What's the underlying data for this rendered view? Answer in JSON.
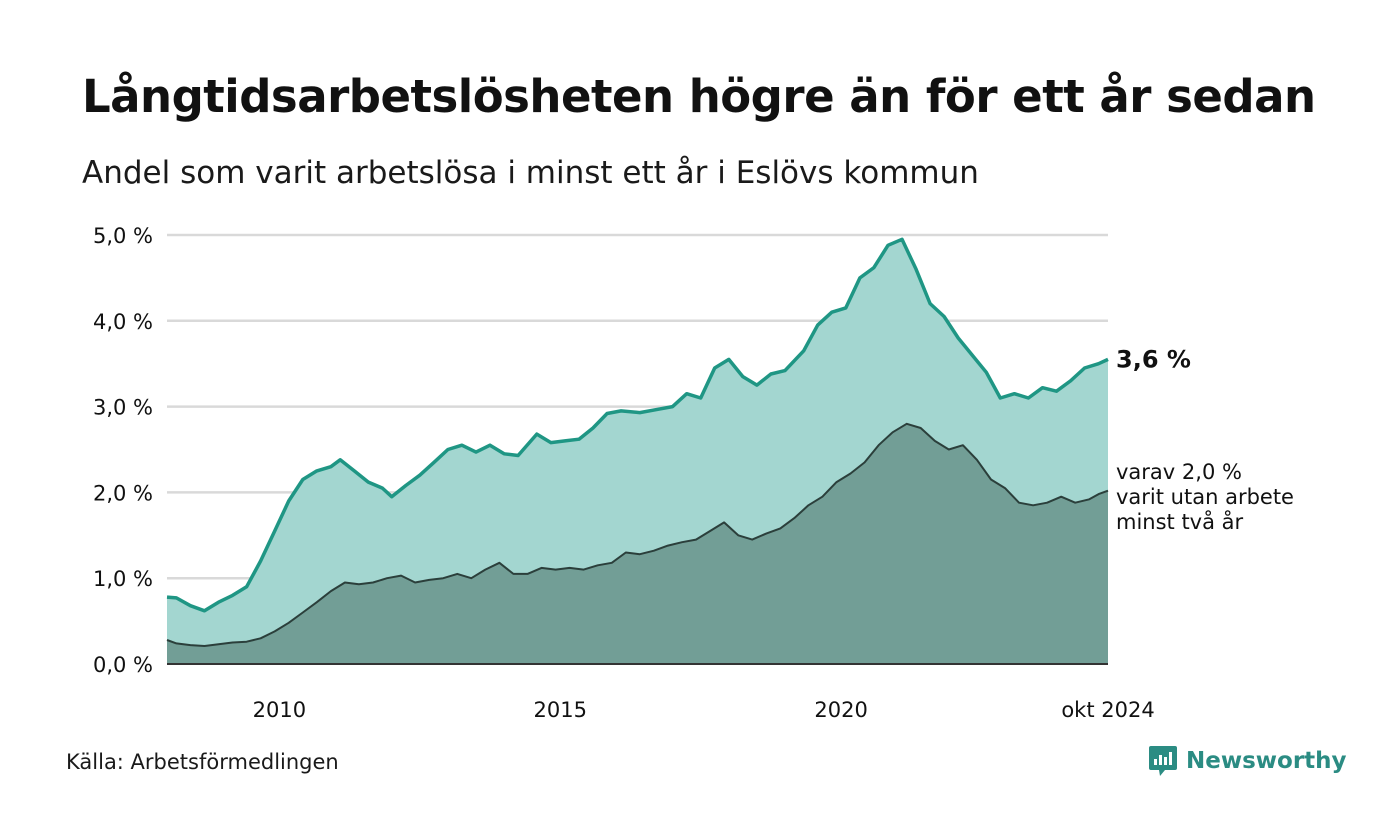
{
  "header": {
    "title": "Långtidsarbetslösheten högre än för ett år sedan",
    "subtitle": "Andel som varit arbetslösa i minst ett år i Eslövs kommun"
  },
  "footer": {
    "source": "Källa: Arbetsförmedlingen",
    "brand": "Newsworthy"
  },
  "colors": {
    "total_line": "#1f9684",
    "total_fill": "#a3d6d0",
    "twoyear_line": "#2b3f3b",
    "twoyear_fill": "#729e96",
    "grid": "#d9d9d9",
    "brand": "#2b8c83"
  },
  "chart_data": {
    "type": "area",
    "title": "Långtidsarbetslösheten högre än för ett år sedan",
    "subtitle": "Andel som varit arbetslösa i minst ett år i Eslövs kommun",
    "xlabel": "",
    "ylabel": "",
    "x_range": [
      "2008-01",
      "2024-10"
    ],
    "ylim": [
      0,
      5.0
    ],
    "y_ticks": [
      {
        "value": 0,
        "label": "0,0 %"
      },
      {
        "value": 1,
        "label": "1,0 %"
      },
      {
        "value": 2,
        "label": "2,0 %"
      },
      {
        "value": 3,
        "label": "3,0 %"
      },
      {
        "value": 4,
        "label": "4,0 %"
      },
      {
        "value": 5,
        "label": "5,0 %"
      }
    ],
    "x_ticks": [
      {
        "value": "2010-01",
        "label": "2010"
      },
      {
        "value": "2015-01",
        "label": "2015"
      },
      {
        "value": "2020-01",
        "label": "2020"
      },
      {
        "value": "2024-10",
        "label": "okt 2024"
      }
    ],
    "grid": true,
    "legend": "none",
    "end_labels": {
      "total": "3,6 %",
      "twoyear": [
        "varav 2,0 %",
        "varit utan arbete",
        "minst två år"
      ]
    },
    "series": [
      {
        "key": "total",
        "values": [
          [
            "2008-01",
            0.78
          ],
          [
            "2008-03",
            0.77
          ],
          [
            "2008-06",
            0.68
          ],
          [
            "2008-09",
            0.62
          ],
          [
            "2008-12",
            0.72
          ],
          [
            "2009-03",
            0.8
          ],
          [
            "2009-06",
            0.9
          ],
          [
            "2009-09",
            1.2
          ],
          [
            "2009-12",
            1.55
          ],
          [
            "2010-03",
            1.9
          ],
          [
            "2010-06",
            2.15
          ],
          [
            "2010-09",
            2.25
          ],
          [
            "2010-12",
            2.3
          ],
          [
            "2011-02",
            2.38
          ],
          [
            "2011-05",
            2.25
          ],
          [
            "2011-08",
            2.12
          ],
          [
            "2011-11",
            2.05
          ],
          [
            "2012-01",
            1.95
          ],
          [
            "2012-04",
            2.08
          ],
          [
            "2012-07",
            2.2
          ],
          [
            "2012-10",
            2.35
          ],
          [
            "2013-01",
            2.5
          ],
          [
            "2013-04",
            2.55
          ],
          [
            "2013-07",
            2.47
          ],
          [
            "2013-10",
            2.55
          ],
          [
            "2014-01",
            2.45
          ],
          [
            "2014-04",
            2.43
          ],
          [
            "2014-08",
            2.68
          ],
          [
            "2014-11",
            2.58
          ],
          [
            "2015-02",
            2.6
          ],
          [
            "2015-05",
            2.62
          ],
          [
            "2015-08",
            2.75
          ],
          [
            "2015-11",
            2.92
          ],
          [
            "2016-02",
            2.95
          ],
          [
            "2016-06",
            2.93
          ],
          [
            "2016-10",
            2.97
          ],
          [
            "2017-01",
            3.0
          ],
          [
            "2017-04",
            3.15
          ],
          [
            "2017-07",
            3.1
          ],
          [
            "2017-10",
            3.45
          ],
          [
            "2018-01",
            3.55
          ],
          [
            "2018-04",
            3.35
          ],
          [
            "2018-07",
            3.25
          ],
          [
            "2018-10",
            3.38
          ],
          [
            "2019-01",
            3.42
          ],
          [
            "2019-05",
            3.65
          ],
          [
            "2019-08",
            3.95
          ],
          [
            "2019-11",
            4.1
          ],
          [
            "2020-02",
            4.15
          ],
          [
            "2020-05",
            4.5
          ],
          [
            "2020-08",
            4.62
          ],
          [
            "2020-11",
            4.88
          ],
          [
            "2021-02",
            4.95
          ],
          [
            "2021-05",
            4.6
          ],
          [
            "2021-08",
            4.2
          ],
          [
            "2021-11",
            4.05
          ],
          [
            "2022-02",
            3.8
          ],
          [
            "2022-05",
            3.6
          ],
          [
            "2022-08",
            3.4
          ],
          [
            "2022-11",
            3.1
          ],
          [
            "2023-02",
            3.15
          ],
          [
            "2023-05",
            3.1
          ],
          [
            "2023-08",
            3.22
          ],
          [
            "2023-11",
            3.18
          ],
          [
            "2024-02",
            3.3
          ],
          [
            "2024-05",
            3.45
          ],
          [
            "2024-08",
            3.5
          ],
          [
            "2024-10",
            3.55
          ]
        ]
      },
      {
        "key": "twoyear",
        "values": [
          [
            "2008-01",
            0.28
          ],
          [
            "2008-03",
            0.24
          ],
          [
            "2008-06",
            0.22
          ],
          [
            "2008-09",
            0.21
          ],
          [
            "2008-12",
            0.23
          ],
          [
            "2009-03",
            0.25
          ],
          [
            "2009-06",
            0.26
          ],
          [
            "2009-09",
            0.3
          ],
          [
            "2009-12",
            0.38
          ],
          [
            "2010-03",
            0.48
          ],
          [
            "2010-06",
            0.6
          ],
          [
            "2010-09",
            0.72
          ],
          [
            "2010-12",
            0.85
          ],
          [
            "2011-03",
            0.95
          ],
          [
            "2011-06",
            0.93
          ],
          [
            "2011-09",
            0.95
          ],
          [
            "2011-12",
            1.0
          ],
          [
            "2012-03",
            1.03
          ],
          [
            "2012-06",
            0.95
          ],
          [
            "2012-09",
            0.98
          ],
          [
            "2012-12",
            1.0
          ],
          [
            "2013-03",
            1.05
          ],
          [
            "2013-06",
            1.0
          ],
          [
            "2013-09",
            1.1
          ],
          [
            "2013-12",
            1.18
          ],
          [
            "2014-03",
            1.05
          ],
          [
            "2014-06",
            1.05
          ],
          [
            "2014-09",
            1.12
          ],
          [
            "2014-12",
            1.1
          ],
          [
            "2015-03",
            1.12
          ],
          [
            "2015-06",
            1.1
          ],
          [
            "2015-09",
            1.15
          ],
          [
            "2015-12",
            1.18
          ],
          [
            "2016-03",
            1.3
          ],
          [
            "2016-06",
            1.28
          ],
          [
            "2016-09",
            1.32
          ],
          [
            "2016-12",
            1.38
          ],
          [
            "2017-03",
            1.42
          ],
          [
            "2017-06",
            1.45
          ],
          [
            "2017-09",
            1.55
          ],
          [
            "2017-12",
            1.65
          ],
          [
            "2018-03",
            1.5
          ],
          [
            "2018-06",
            1.45
          ],
          [
            "2018-09",
            1.52
          ],
          [
            "2018-12",
            1.58
          ],
          [
            "2019-03",
            1.7
          ],
          [
            "2019-06",
            1.85
          ],
          [
            "2019-09",
            1.95
          ],
          [
            "2019-12",
            2.12
          ],
          [
            "2020-03",
            2.22
          ],
          [
            "2020-06",
            2.35
          ],
          [
            "2020-09",
            2.55
          ],
          [
            "2020-12",
            2.7
          ],
          [
            "2021-03",
            2.8
          ],
          [
            "2021-06",
            2.75
          ],
          [
            "2021-09",
            2.6
          ],
          [
            "2021-12",
            2.5
          ],
          [
            "2022-03",
            2.55
          ],
          [
            "2022-06",
            2.38
          ],
          [
            "2022-09",
            2.15
          ],
          [
            "2022-12",
            2.05
          ],
          [
            "2023-03",
            1.88
          ],
          [
            "2023-06",
            1.85
          ],
          [
            "2023-09",
            1.88
          ],
          [
            "2023-12",
            1.95
          ],
          [
            "2024-03",
            1.88
          ],
          [
            "2024-06",
            1.92
          ],
          [
            "2024-08",
            1.98
          ],
          [
            "2024-10",
            2.02
          ]
        ]
      }
    ]
  }
}
